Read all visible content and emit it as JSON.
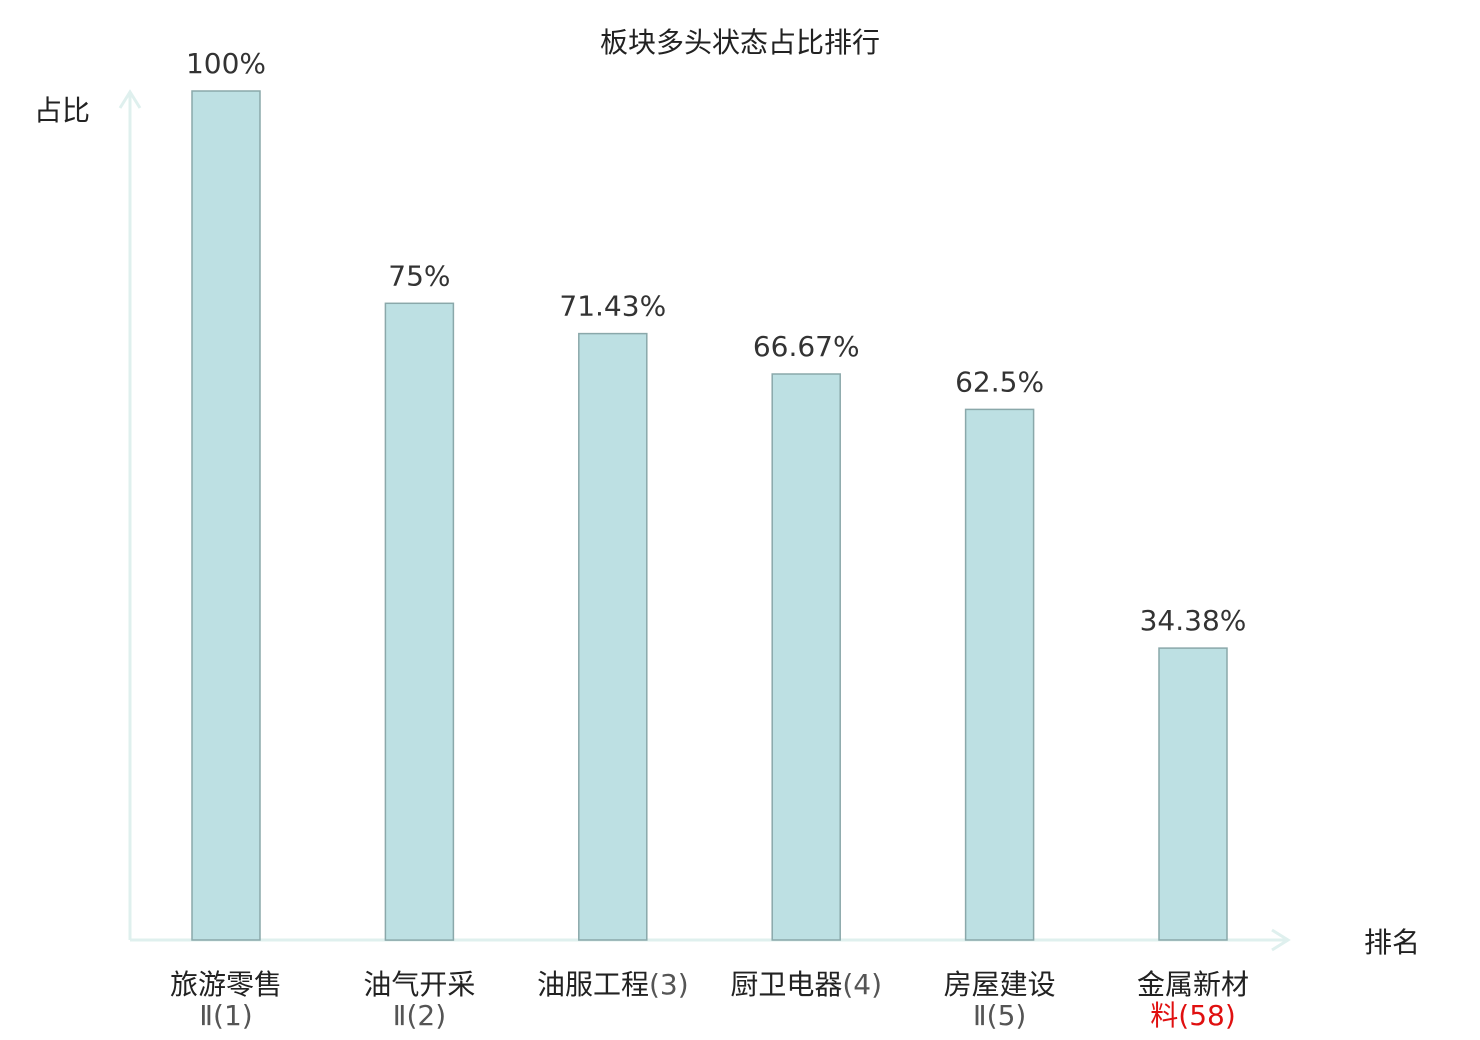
{
  "chart_data": {
    "type": "bar",
    "title": "板块多头状态占比排行",
    "ylabel": "占比",
    "xlabel": "排名",
    "ylim": [
      0,
      100
    ],
    "grid": false,
    "legend": "none",
    "categories": [
      {
        "name": "旅游零售",
        "suffix": "Ⅱ",
        "rank": "(1)",
        "highlight": false
      },
      {
        "name": "油气开采",
        "suffix": "Ⅱ",
        "rank": "(2)",
        "highlight": false
      },
      {
        "name": "油服工程",
        "suffix": "",
        "rank": "(3)",
        "highlight": false
      },
      {
        "name": "厨卫电器",
        "suffix": "",
        "rank": "(4)",
        "highlight": false
      },
      {
        "name": "房屋建设",
        "suffix": "Ⅱ",
        "rank": "(5)",
        "highlight": false
      },
      {
        "name": "金属新材",
        "suffix": "料",
        "rank": "(58)",
        "highlight": true
      }
    ],
    "values": [
      100,
      75,
      71.43,
      66.67,
      62.5,
      34.38
    ],
    "value_labels": [
      "100%",
      "75%",
      "71.43%",
      "66.67%",
      "62.5%",
      "34.38%"
    ]
  },
  "colors": {
    "bar_fill": "#bde0e3",
    "bar_stroke": "#8aa8aa",
    "axis": "#dff0ee",
    "highlight_text": "#e01010",
    "text": "#222222",
    "rank_text": "#555555"
  }
}
